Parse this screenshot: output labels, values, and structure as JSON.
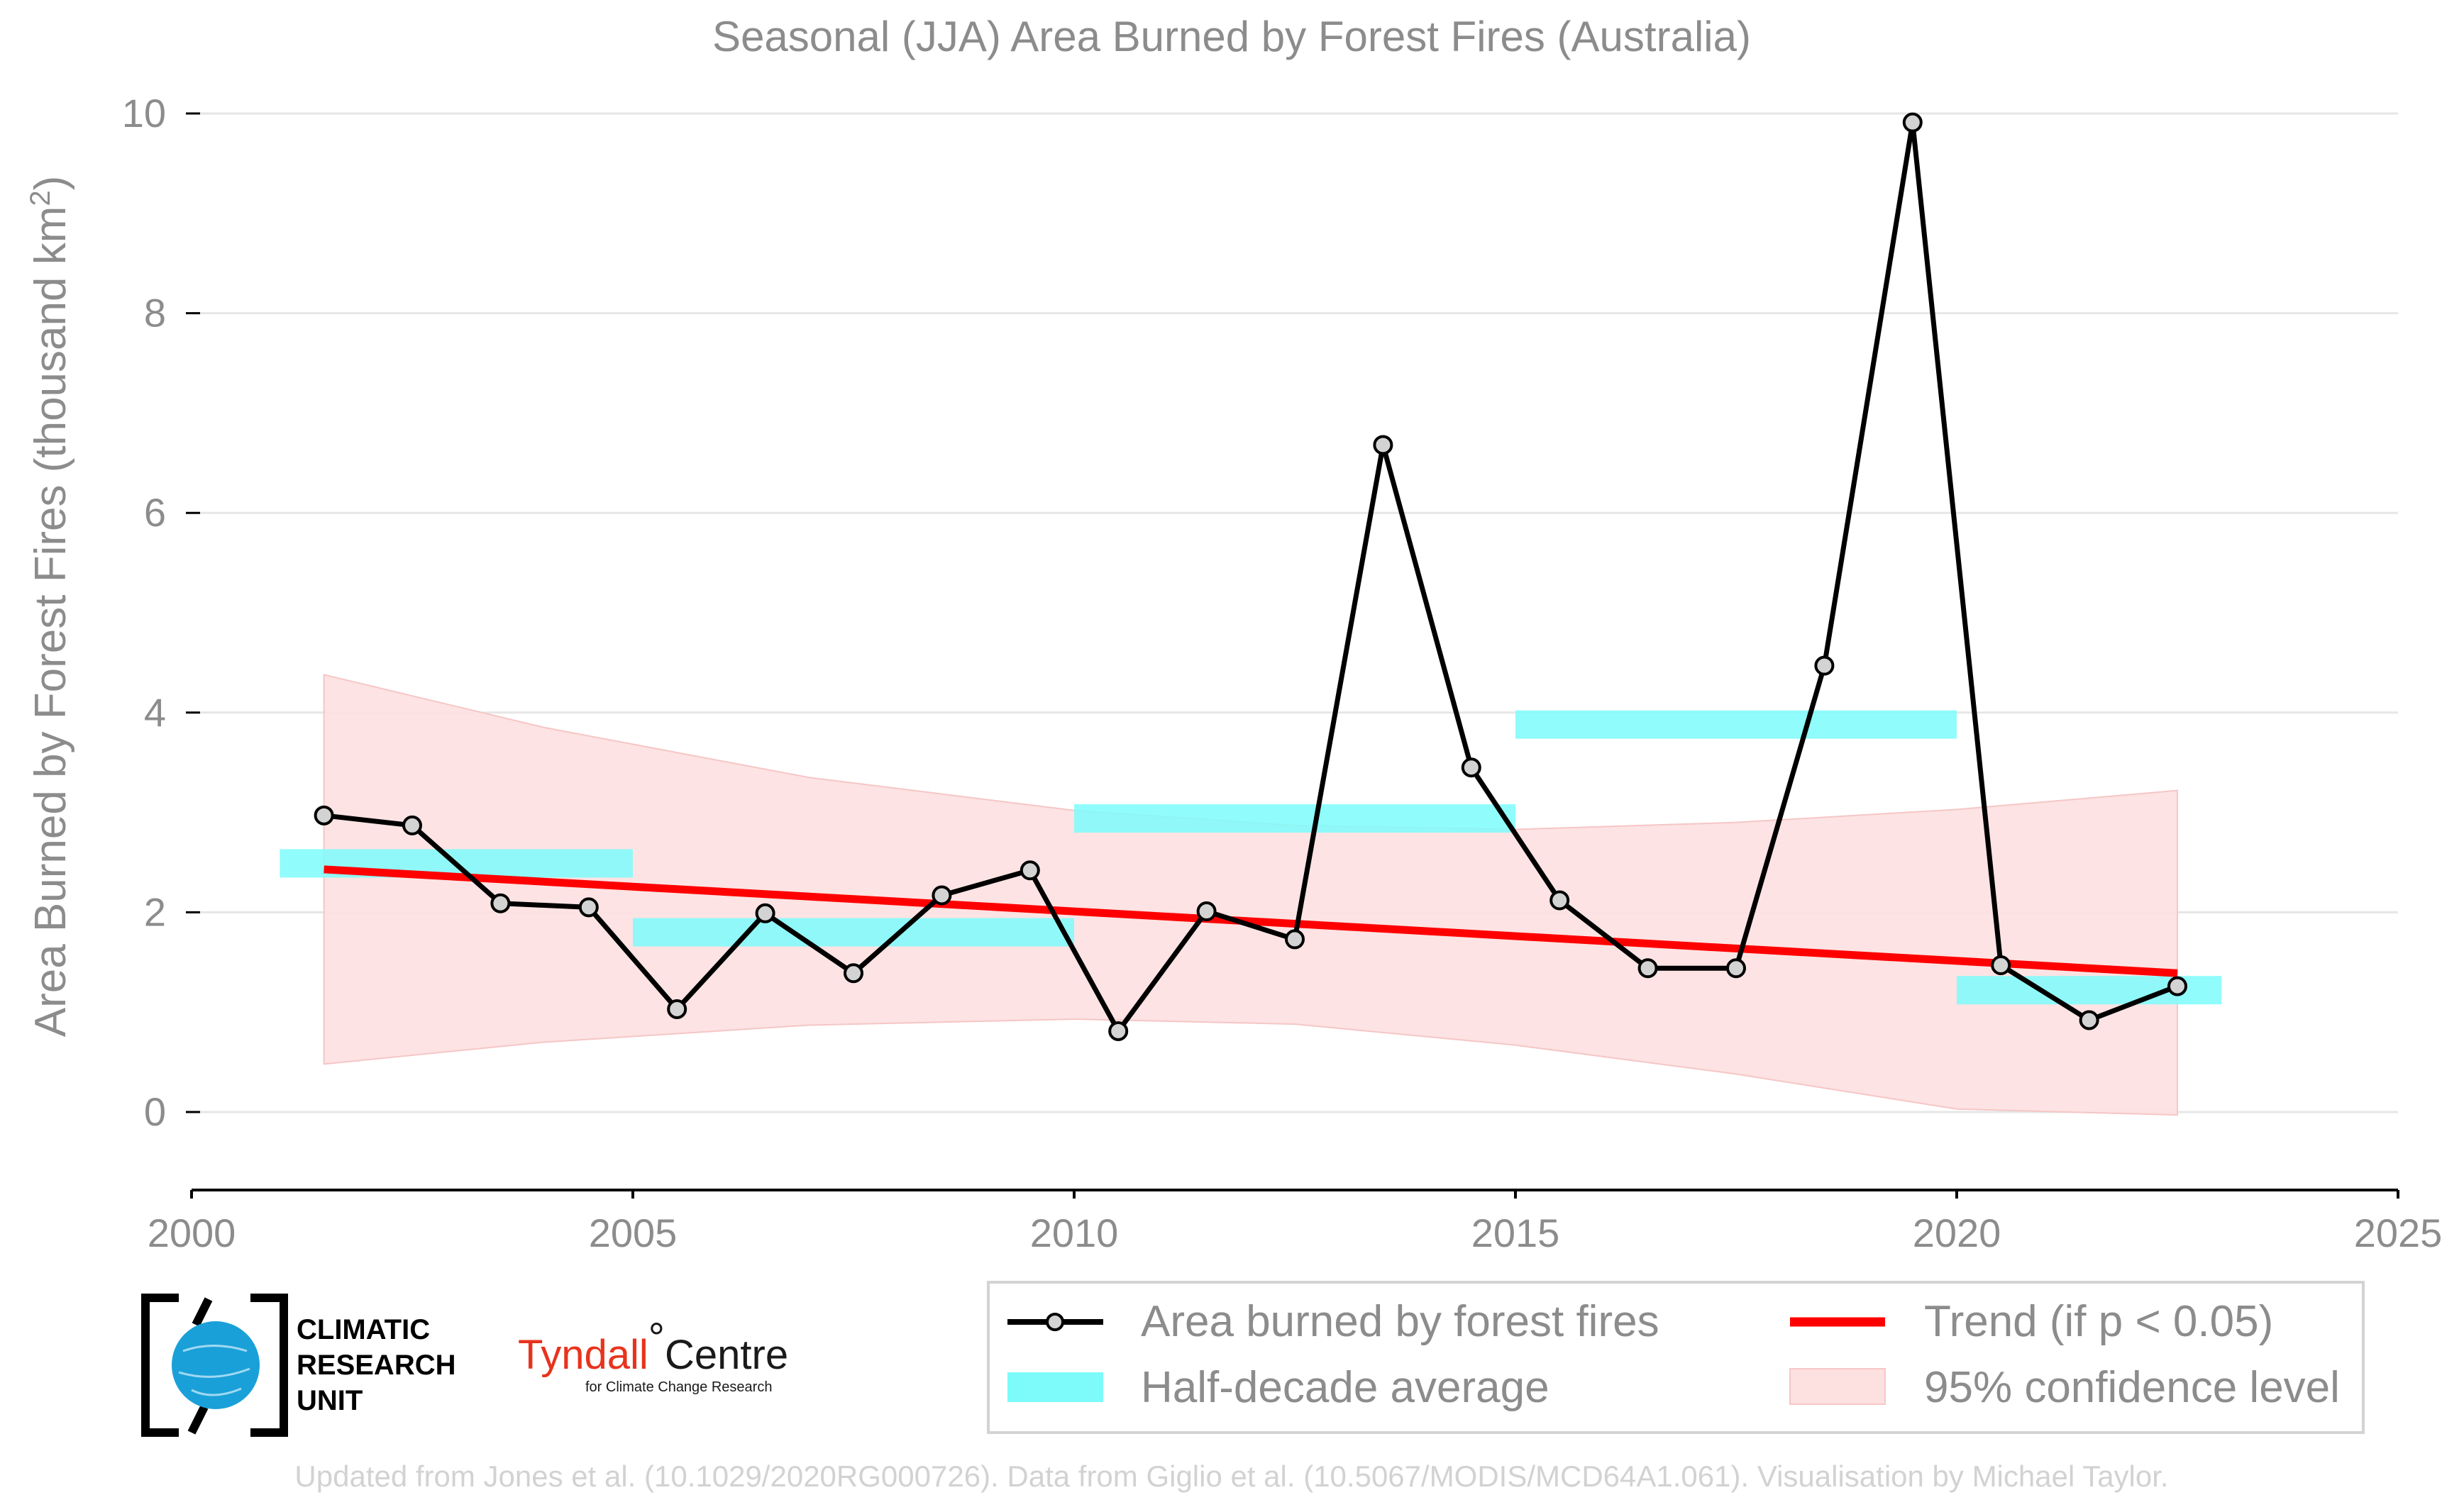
{
  "chart_data": {
    "type": "line",
    "title": "Seasonal (JJA) Area Burned by Forest Fires (Australia)",
    "ylabel": "Area Burned by Forest Fires (thousand km²)",
    "xlim": [
      2000,
      2025
    ],
    "ylim": [
      -0.8,
      10.2
    ],
    "x_ticks": [
      2000,
      2005,
      2010,
      2015,
      2020,
      2025
    ],
    "y_ticks": [
      0,
      2,
      4,
      6,
      8,
      10
    ],
    "grid": "horizontal",
    "legend_position": "bottom",
    "series": [
      {
        "name": "Area burned by forest fires",
        "color": "#000000",
        "x": [
          2001.5,
          2002.5,
          2003.5,
          2004.5,
          2005.5,
          2006.5,
          2007.5,
          2008.5,
          2009.5,
          2010.5,
          2011.5,
          2012.5,
          2013.5,
          2014.5,
          2015.5,
          2016.5,
          2017.5,
          2018.5,
          2019.5,
          2020.5,
          2021.5,
          2022.5
        ],
        "values": [
          2.97,
          2.87,
          2.09,
          2.05,
          1.03,
          1.99,
          1.39,
          2.17,
          2.42,
          0.81,
          2.01,
          1.73,
          6.68,
          3.45,
          2.12,
          1.44,
          1.44,
          4.47,
          9.91,
          1.47,
          0.92,
          1.26
        ]
      },
      {
        "name": "Half-decade average",
        "color": "#7dfbfb",
        "segments": [
          {
            "x0": 2001,
            "x1": 2005,
            "value": 2.49
          },
          {
            "x0": 2005,
            "x1": 2010,
            "value": 1.8
          },
          {
            "x0": 2010,
            "x1": 2015,
            "value": 2.94
          },
          {
            "x0": 2015,
            "x1": 2020,
            "value": 3.88
          },
          {
            "x0": 2020,
            "x1": 2023,
            "value": 1.22
          }
        ]
      },
      {
        "name": "Trend (if p < 0.05)",
        "color": "#ff0000",
        "x": [
          2001.5,
          2022.5
        ],
        "values": [
          2.43,
          1.39
        ]
      },
      {
        "name": "95% confidence level",
        "color": "#fde0e0",
        "x": [
          2001.5,
          2004,
          2007,
          2010,
          2012.5,
          2015,
          2017.5,
          2020,
          2022.5
        ],
        "upper": [
          4.38,
          3.85,
          3.35,
          3.02,
          2.87,
          2.83,
          2.9,
          3.03,
          3.22
        ],
        "lower": [
          0.48,
          0.7,
          0.87,
          0.93,
          0.88,
          0.67,
          0.38,
          0.03,
          -0.03
        ]
      }
    ]
  },
  "legend": {
    "items": [
      {
        "label": "Area burned by forest fires"
      },
      {
        "label": "Trend (if p < 0.05)"
      },
      {
        "label": "Half-decade average"
      },
      {
        "label": "95% confidence level"
      }
    ]
  },
  "logos": {
    "cru_line1": "CLIMATIC",
    "cru_line2": "RESEARCH",
    "cru_line3": "UNIT",
    "tyndall_name": "Tyndall",
    "tyndall_centre": "Centre",
    "tyndall_degree": "°",
    "tyndall_sub": "for Climate Change Research"
  },
  "footer": "Updated from Jones et al. (10.1029/2020RG000726). Data from Giglio et al. (10.5067/MODIS/MCD64A1.061). Visualisation by Michael Taylor."
}
